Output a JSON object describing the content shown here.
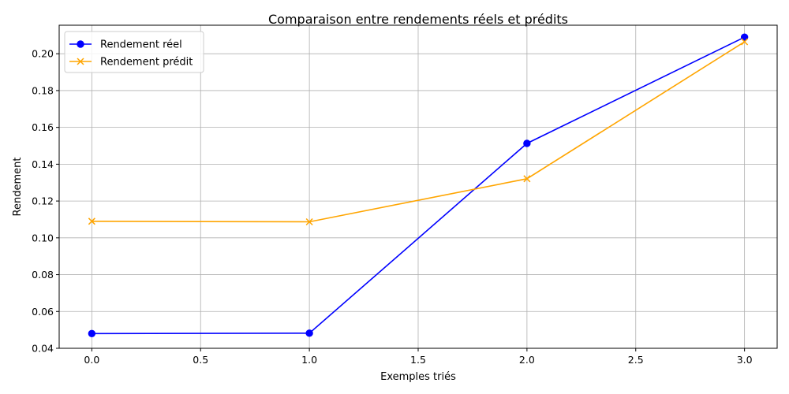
{
  "chart_data": {
    "type": "line",
    "title": "Comparaison entre rendements réels et prédits",
    "xlabel": "Exemples triés",
    "ylabel": "Rendement",
    "x": [
      0,
      1,
      2,
      3
    ],
    "xlim": [
      -0.15,
      3.15
    ],
    "ylim": [
      0.04,
      0.2155
    ],
    "xticks": [
      "0.0",
      "0.5",
      "1.0",
      "1.5",
      "2.0",
      "2.5",
      "3.0"
    ],
    "xtick_values": [
      0,
      0.5,
      1.0,
      1.5,
      2.0,
      2.5,
      3.0
    ],
    "yticks": [
      "0.04",
      "0.06",
      "0.08",
      "0.10",
      "0.12",
      "0.14",
      "0.16",
      "0.18",
      "0.20"
    ],
    "ytick_values": [
      0.04,
      0.06,
      0.08,
      0.1,
      0.12,
      0.14,
      0.16,
      0.18,
      0.2
    ],
    "grid": true,
    "legend_position": "top-left",
    "series": [
      {
        "name": "Rendement réel",
        "values": [
          0.048,
          0.0482,
          0.1513,
          0.209
        ],
        "color": "#0000ff",
        "marker": "circle"
      },
      {
        "name": "Rendement prédit",
        "values": [
          0.109,
          0.1087,
          0.1321,
          0.2065
        ],
        "color": "#ffa500",
        "marker": "x"
      }
    ]
  }
}
